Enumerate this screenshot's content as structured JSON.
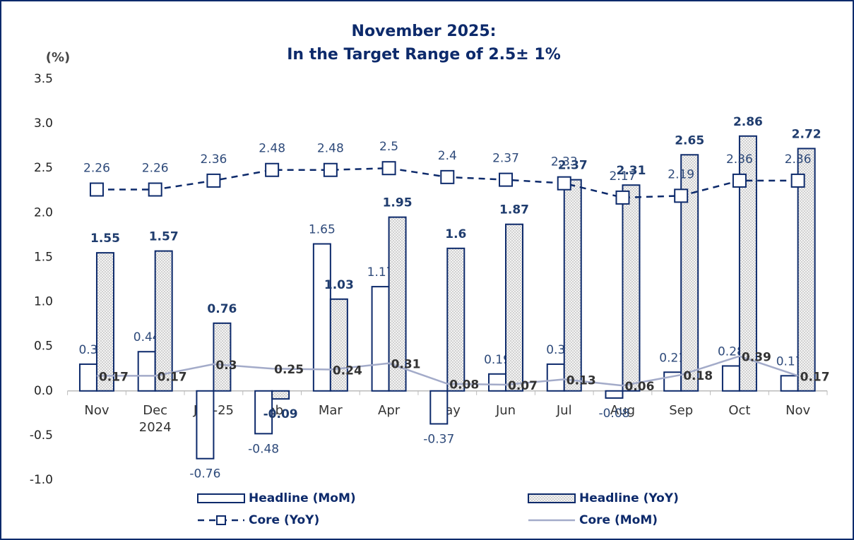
{
  "chart_data": {
    "type": "bar",
    "title": "November 2025:",
    "subtitle": "In the Target Range of 2.5± 1%",
    "y_label": "(%)",
    "categories": [
      "Nov",
      "Dec\n2024",
      "Jan-25",
      "Feb",
      "Mar",
      "Apr",
      "May",
      "Jun",
      "Jul",
      "Aug",
      "Sep",
      "Oct",
      "Nov"
    ],
    "ylim": [
      -1,
      3.5
    ],
    "yticks": [
      {
        "value": -1,
        "label": "-1.0"
      },
      -0.5,
      {
        "value": 0,
        "label": "0.0"
      },
      0.5,
      {
        "value": 1,
        "label": "1.0"
      },
      1.5,
      {
        "value": 2,
        "label": "2.0"
      },
      2.5,
      {
        "value": 3,
        "label": "3.0"
      },
      3.5
    ],
    "grid": false,
    "legend": "bottom",
    "series": [
      {
        "name": "Headline (MoM)",
        "type": "bar",
        "color": "#0d2a6b",
        "fill": "#ffffff",
        "values": [
          0.3,
          0.44,
          -0.76,
          -0.48,
          1.65,
          1.17,
          -0.37,
          0.19,
          0.3,
          -0.08,
          0.21,
          0.28,
          0.17
        ]
      },
      {
        "name": "Headline (YoY)",
        "type": "bar",
        "color": "#0d2a6b",
        "fill": "dots",
        "values": [
          1.55,
          1.57,
          0.76,
          -0.09,
          1.03,
          1.95,
          1.6,
          1.87,
          2.37,
          2.31,
          2.65,
          2.86,
          2.72
        ]
      },
      {
        "name": "Core (YoY)",
        "type": "line",
        "color": "#0d2a6b",
        "dashed": true,
        "marker": "square",
        "values": [
          2.26,
          2.26,
          2.36,
          2.48,
          2.48,
          2.5,
          2.4,
          2.37,
          2.33,
          2.17,
          2.19,
          2.36,
          2.36
        ]
      },
      {
        "name": "Core (MoM)",
        "type": "line",
        "color": "#a3abc9",
        "dashed": false,
        "marker": "none",
        "values": [
          0.17,
          0.17,
          0.3,
          0.25,
          0.24,
          0.31,
          0.08,
          0.07,
          0.13,
          0.06,
          0.18,
          0.39,
          0.17
        ]
      }
    ]
  }
}
